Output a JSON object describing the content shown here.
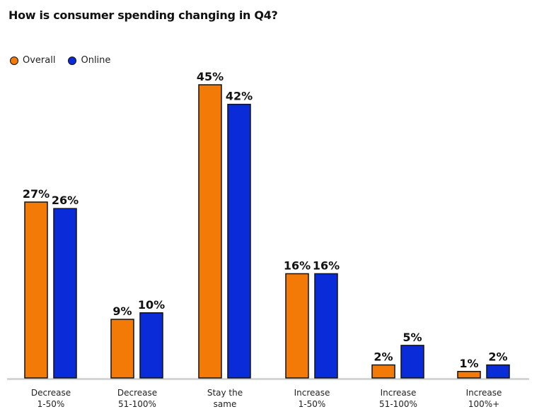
{
  "chart_data": {
    "type": "bar",
    "title": "How is consumer spending changing in Q4?",
    "categories": [
      [
        "Decrease",
        "1-50%"
      ],
      [
        "Decrease",
        "51-100%"
      ],
      [
        "Stay the",
        "same"
      ],
      [
        "Increase",
        "1-50%"
      ],
      [
        "Increase",
        "51-100%"
      ],
      [
        "Increase",
        "100%+"
      ]
    ],
    "series": [
      {
        "name": "Overall",
        "color": "#F47A08",
        "values": [
          27,
          9,
          45,
          16,
          2,
          1
        ]
      },
      {
        "name": "Online",
        "color": "#0A2BD8",
        "values": [
          26,
          10,
          42,
          16,
          5,
          2
        ]
      }
    ],
    "value_suffix": "%",
    "ylim": [
      0,
      45
    ],
    "grid": false,
    "legend_position": "top-left"
  }
}
